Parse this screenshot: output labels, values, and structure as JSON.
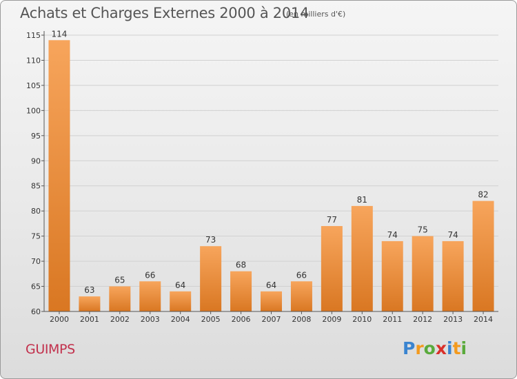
{
  "title": "Achats et Charges Externes 2000 à 2014",
  "unit": "(en milliers d'€)",
  "commune": "GUIMPS",
  "logo": {
    "text": "Proxiti",
    "letters": [
      {
        "char": "P",
        "color": "#3a84d0"
      },
      {
        "char": "r",
        "color": "#f39a1e"
      },
      {
        "char": "o",
        "color": "#5aaa3c"
      },
      {
        "char": "x",
        "color": "#d9302a"
      },
      {
        "char": "i",
        "color": "#3a84d0"
      },
      {
        "char": "t",
        "color": "#f39a1e"
      },
      {
        "char": "i",
        "color": "#5aaa3c"
      }
    ]
  },
  "colors": {
    "bar_top": "#f7a55c",
    "bar_bottom": "#d97722",
    "grid": "#d0d0d0",
    "axis_text": "#333333"
  },
  "chart_data": {
    "type": "bar",
    "title": "Achats et Charges Externes 2000 à 2014",
    "subtitle": "(en milliers d'€)",
    "categories": [
      "2000",
      "2001",
      "2002",
      "2003",
      "2004",
      "2005",
      "2006",
      "2007",
      "2008",
      "2009",
      "2010",
      "2011",
      "2012",
      "2013",
      "2014"
    ],
    "values": [
      114,
      63,
      65,
      66,
      64,
      73,
      68,
      64,
      66,
      77,
      81,
      74,
      75,
      74,
      82
    ],
    "ylim": [
      60,
      115
    ],
    "yticks": [
      60,
      65,
      70,
      75,
      80,
      85,
      90,
      95,
      100,
      105,
      110,
      115
    ],
    "grid": true,
    "data_labels": true
  }
}
